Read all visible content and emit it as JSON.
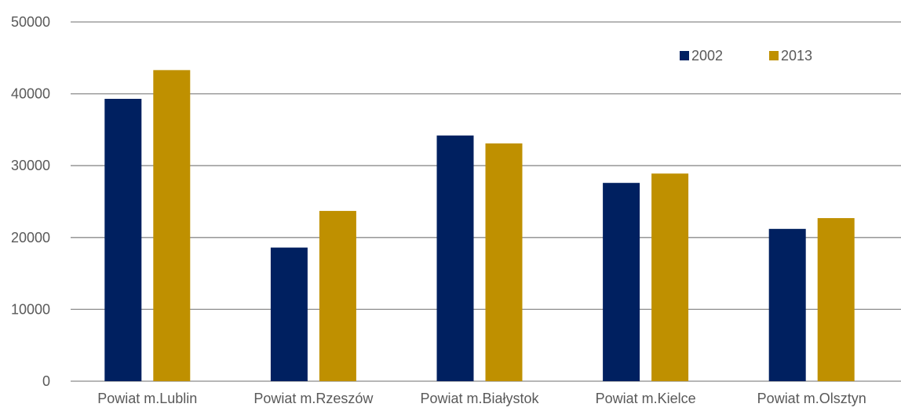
{
  "chart_data": {
    "type": "bar",
    "title": "",
    "xlabel": "",
    "ylabel": "",
    "categories": [
      "Powiat m.Lublin",
      "Powiat m.Rzeszów",
      "Powiat m.Białystok",
      "Powiat m.Kielce",
      "Powiat m.Olsztyn"
    ],
    "series": [
      {
        "name": "2002",
        "color": "#002060",
        "values": [
          39300,
          18600,
          34200,
          27600,
          21200
        ]
      },
      {
        "name": "2013",
        "color": "#BF9000",
        "values": [
          43300,
          23700,
          33100,
          28900,
          22700
        ]
      }
    ],
    "ylim": [
      0,
      50000
    ],
    "yticks": [
      0,
      10000,
      20000,
      30000,
      40000,
      50000
    ],
    "grid": true,
    "legend_position": "top-right"
  }
}
